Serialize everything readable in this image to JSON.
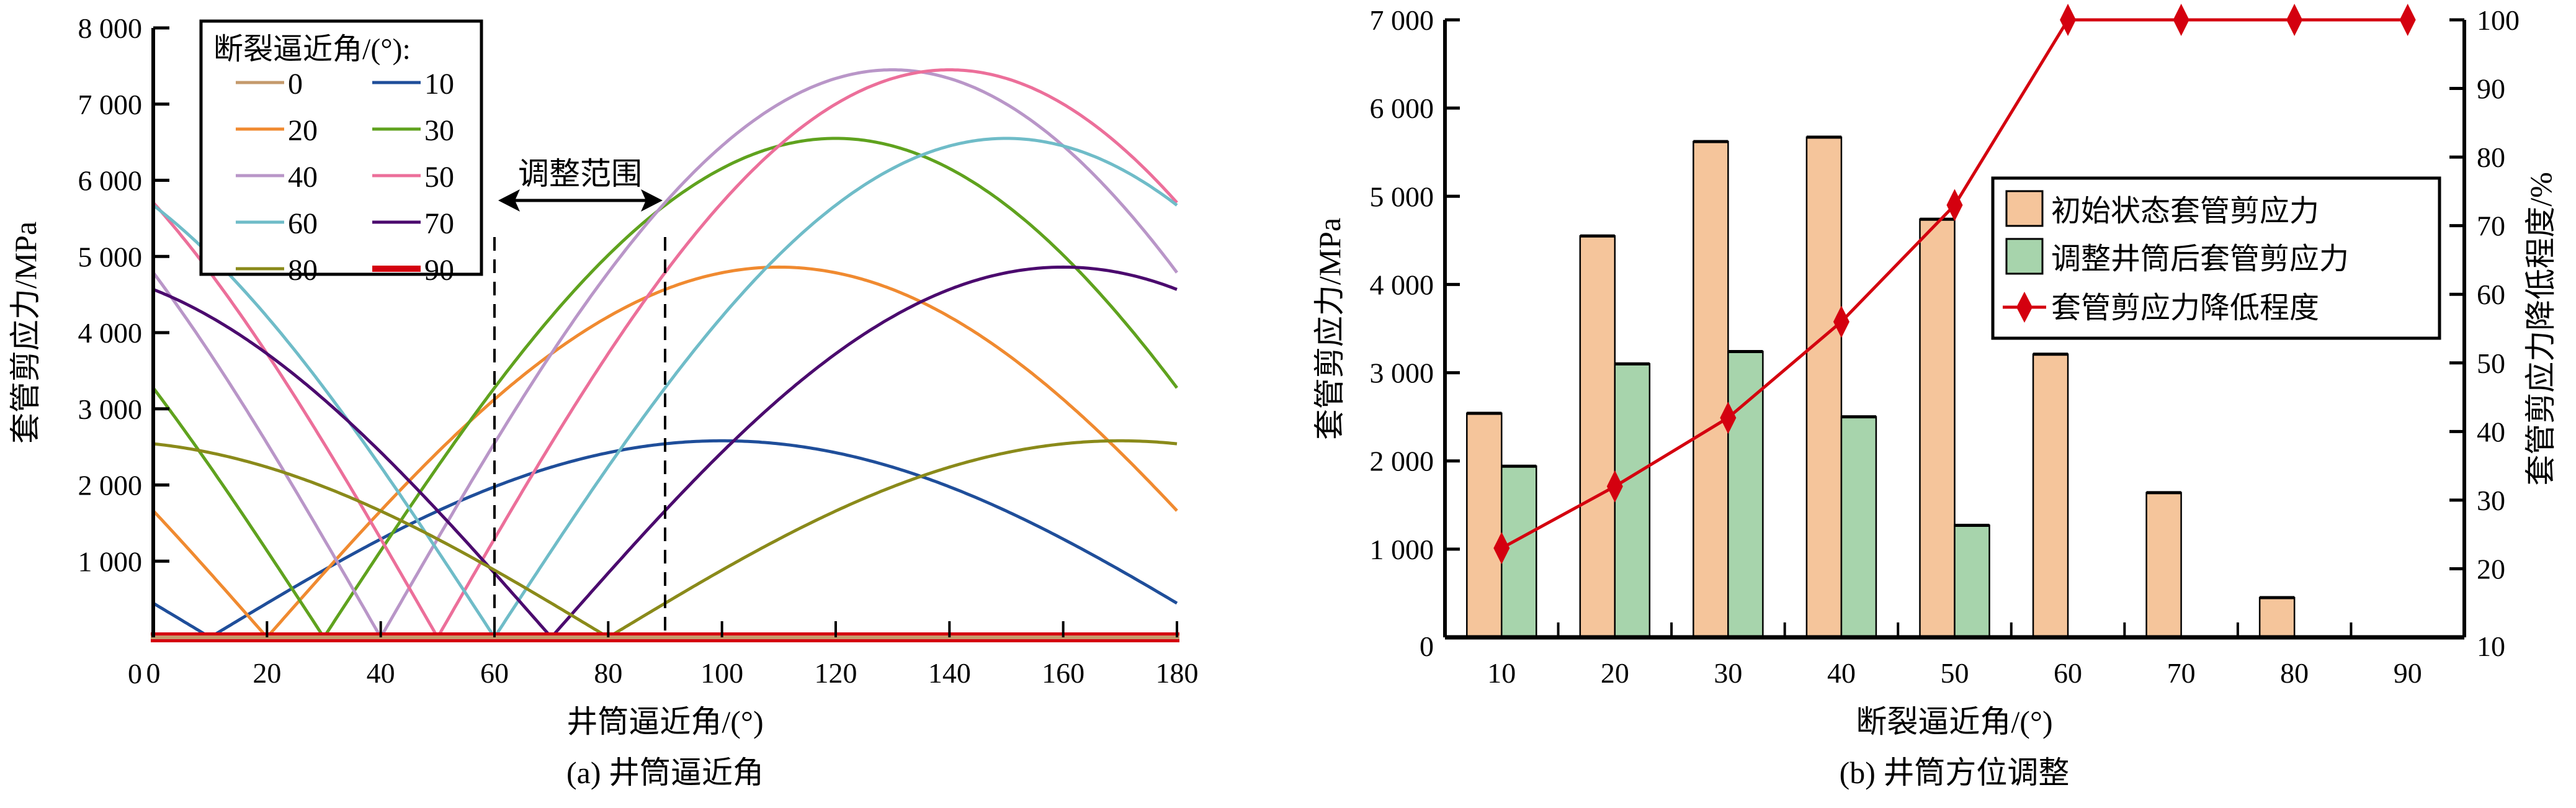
{
  "chart_data": [
    {
      "type": "line",
      "title": "",
      "caption": "(a) 井筒逼近角",
      "xlabel": "井筒逼近角/(°)",
      "ylabel": "套管剪应力/MPa",
      "xlim": [
        0,
        180
      ],
      "ylim": [
        0,
        8000
      ],
      "x_ticks": [
        0,
        20,
        40,
        60,
        80,
        100,
        120,
        140,
        160,
        180
      ],
      "y_ticks": [
        1000,
        2000,
        3000,
        4000,
        5000,
        6000,
        7000,
        8000
      ],
      "y_tick_labels": [
        "1 000",
        "2 000",
        "3 000",
        "4 000",
        "5 000",
        "6 000",
        "7 000",
        "8 000"
      ],
      "x_tick_labels": [
        "0",
        "20",
        "40",
        "60",
        "80",
        "100",
        "120",
        "140",
        "160",
        "180"
      ],
      "legend_title": "断裂逼近角/(°):",
      "legend_placement": "top-left",
      "annotation": {
        "text": "调整范围",
        "from_x": 60,
        "to_x": 90
      },
      "curve_model": "peak × |sin(x − fault_angle)|",
      "series": [
        {
          "name": "0",
          "fault_angle": 0,
          "peak": 0,
          "color": "#c49a6c"
        },
        {
          "name": "10",
          "fault_angle": 10,
          "peak": 2580,
          "color": "#1f4e9a"
        },
        {
          "name": "20",
          "fault_angle": 20,
          "peak": 4860,
          "color": "#f08a30"
        },
        {
          "name": "30",
          "fault_angle": 30,
          "peak": 6550,
          "color": "#5fa21e"
        },
        {
          "name": "40",
          "fault_angle": 40,
          "peak": 7450,
          "color": "#b996c8"
        },
        {
          "name": "50",
          "fault_angle": 50,
          "peak": 7450,
          "color": "#ec6f9a"
        },
        {
          "name": "60",
          "fault_angle": 60,
          "peak": 6550,
          "color": "#6fbcc8"
        },
        {
          "name": "70",
          "fault_angle": 70,
          "peak": 4860,
          "color": "#4b0a6e"
        },
        {
          "name": "80",
          "fault_angle": 80,
          "peak": 2580,
          "color": "#8a8a1a"
        },
        {
          "name": "90",
          "fault_angle": 90,
          "peak": 0,
          "color": "#d4000f"
        }
      ]
    },
    {
      "type": "bar",
      "title": "",
      "caption": "(b) 井筒方位调整",
      "xlabel": "断裂逼近角/(°)",
      "ylabel": "套管剪应力/MPa",
      "y2label": "套管剪应力降低程度/%",
      "categories": [
        "10",
        "20",
        "30",
        "40",
        "50",
        "60",
        "70",
        "80",
        "90"
      ],
      "ylim": [
        0,
        7000
      ],
      "y2lim": [
        10,
        100
      ],
      "y_ticks": [
        0,
        1000,
        2000,
        3000,
        4000,
        5000,
        6000,
        7000
      ],
      "y_tick_labels": [
        "0",
        "1 000",
        "2 000",
        "3 000",
        "4 000",
        "5 000",
        "6 000",
        "7 000"
      ],
      "y2_ticks": [
        10,
        20,
        30,
        40,
        50,
        60,
        70,
        80,
        90,
        100
      ],
      "y2_tick_labels": [
        "10",
        "20",
        "30",
        "40",
        "50",
        "60",
        "70",
        "80",
        "90",
        "100"
      ],
      "legend_placement": "center-right",
      "series": [
        {
          "name": "初始状态套管剪应力",
          "kind": "bar",
          "axis": "left",
          "color": "#f5c59b",
          "values": [
            2540,
            4550,
            5620,
            5670,
            4740,
            3210,
            1640,
            450,
            0
          ]
        },
        {
          "name": "调整井筒后套管剪应力",
          "kind": "bar",
          "axis": "left",
          "color": "#a7d4ac",
          "values": [
            1940,
            3100,
            3240,
            2500,
            1270,
            0,
            0,
            0,
            0
          ]
        },
        {
          "name": "套管剪应力降低程度",
          "kind": "line",
          "axis": "right",
          "marker": "diamond",
          "color": "#d4000f",
          "values": [
            23,
            32,
            42,
            56,
            73,
            100,
            100,
            100,
            100
          ]
        }
      ]
    }
  ]
}
